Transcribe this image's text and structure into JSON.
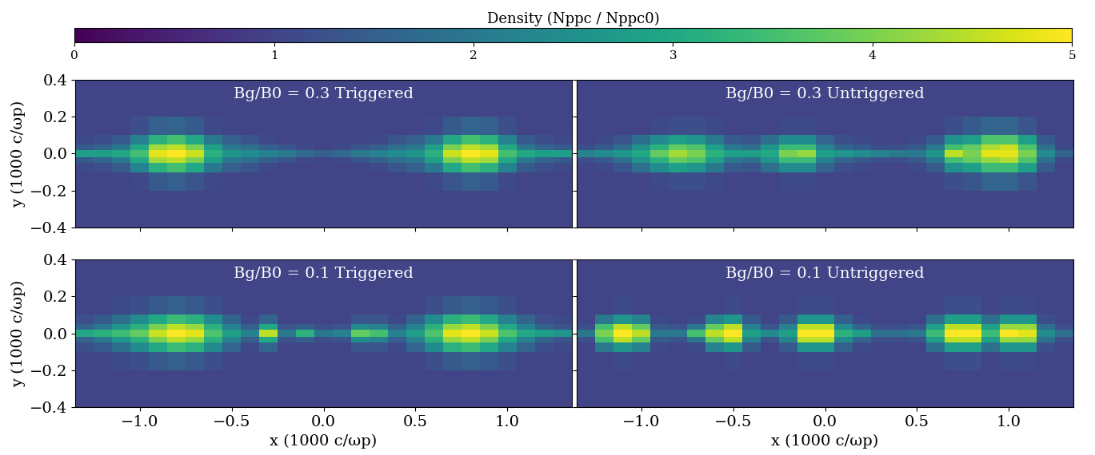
{
  "colorbar": {
    "label": "Density (Nppc / Nppc0)",
    "range": [
      0,
      5
    ],
    "ticks": [
      0,
      1,
      2,
      3,
      4,
      5
    ]
  },
  "chart_data": [
    {
      "type": "heatmap",
      "title": "Bg/B0 = 0.3 Triggered",
      "color": "viridis",
      "ylabel": "y (1000 c/ωp)",
      "tick_labels": "y",
      "xlim": [
        -1.35,
        1.35
      ],
      "ylim": [
        -0.4,
        0.4
      ],
      "xticks": [
        {
          "value": -1.0,
          "label": "−1.0"
        },
        {
          "value": -0.5,
          "label": "−0.5"
        },
        0.0,
        0.5,
        1.0
      ],
      "yticks": [
        {
          "value": -0.4,
          "label": "−0.4"
        },
        {
          "value": -0.2,
          "label": "−0.2"
        },
        0.0,
        0.2,
        0.4
      ],
      "x_edges": [
        -1.35,
        -1.25,
        -1.15,
        -1.05,
        -0.95,
        -0.85,
        -0.75,
        -0.65,
        -0.55,
        -0.45,
        -0.35,
        -0.25,
        -0.15,
        -0.05,
        0.05,
        0.15,
        0.25,
        0.35,
        0.45,
        0.55,
        0.65,
        0.75,
        0.85,
        0.95,
        1.05,
        1.15,
        1.25,
        1.35
      ],
      "y_edges": [
        -0.4,
        -0.2,
        -0.1,
        -0.05,
        -0.02,
        0.02,
        0.05,
        0.1,
        0.2,
        0.4
      ],
      "cells": [
        [
          1,
          1,
          1,
          1,
          1,
          1,
          1,
          1,
          1,
          1,
          1,
          1,
          1,
          1,
          1,
          1,
          1,
          1,
          1,
          1,
          1,
          1,
          1,
          1,
          1,
          1,
          1
        ],
        [
          1,
          1,
          1,
          1.1,
          1.4,
          1.5,
          1.3,
          1.1,
          1,
          1,
          1,
          1,
          1,
          1,
          1,
          1,
          1,
          1,
          1,
          1.1,
          1.3,
          1.5,
          1.4,
          1.1,
          1,
          1,
          1
        ],
        [
          1.1,
          1.2,
          1.4,
          2.2,
          3.2,
          3.5,
          3.0,
          2.0,
          1.5,
          1.3,
          1.1,
          1,
          1,
          1,
          1,
          1,
          1.1,
          1.3,
          1.5,
          2.0,
          3.0,
          3.5,
          3.2,
          2.2,
          1.4,
          1.2,
          1.1
        ],
        [
          1.4,
          1.6,
          2.0,
          3.0,
          4.3,
          4.5,
          4.0,
          2.8,
          2.0,
          1.8,
          1.5,
          1.3,
          1.1,
          1,
          1.1,
          1.3,
          1.5,
          1.8,
          2.0,
          2.8,
          4.0,
          4.5,
          4.3,
          3.0,
          2.0,
          1.6,
          1.4
        ],
        [
          2.8,
          2.8,
          3.0,
          3.5,
          4.8,
          5,
          4.6,
          3.2,
          2.6,
          2.4,
          2.2,
          2.0,
          1.7,
          1.5,
          1.7,
          2.0,
          2.2,
          2.4,
          2.6,
          3.2,
          4.6,
          5,
          4.8,
          3.5,
          3.0,
          2.8,
          2.8
        ],
        [
          1.4,
          1.6,
          2.0,
          3.0,
          4.3,
          4.5,
          4.0,
          2.8,
          2.0,
          1.8,
          1.5,
          1.3,
          1.1,
          1,
          1.1,
          1.3,
          1.5,
          1.8,
          2.0,
          2.8,
          4.0,
          4.5,
          4.3,
          3.0,
          2.0,
          1.6,
          1.4
        ],
        [
          1.1,
          1.2,
          1.4,
          2.2,
          3.2,
          3.5,
          3.0,
          2.0,
          1.5,
          1.3,
          1.1,
          1,
          1,
          1,
          1,
          1,
          1.1,
          1.3,
          1.5,
          2.0,
          3.0,
          3.5,
          3.2,
          2.2,
          1.4,
          1.2,
          1.1
        ],
        [
          1,
          1,
          1,
          1.2,
          1.5,
          1.6,
          1.4,
          1.1,
          1,
          1,
          1,
          1,
          1,
          1,
          1,
          1,
          1,
          1,
          1,
          1.1,
          1.4,
          1.6,
          1.5,
          1.2,
          1,
          1,
          1
        ],
        [
          1,
          1,
          1,
          1,
          1,
          1,
          1,
          1,
          1,
          1,
          1,
          1,
          1,
          1,
          1,
          1,
          1,
          1,
          1,
          1,
          1,
          1,
          1,
          1,
          1,
          1,
          1
        ]
      ]
    },
    {
      "type": "heatmap",
      "title": "Bg/B0 = 0.3 Untriggered",
      "color": "viridis",
      "tick_labels": false,
      "xlim": [
        -1.35,
        1.35
      ],
      "ylim": [
        -0.4,
        0.4
      ],
      "xticks": [
        {
          "value": -1.0,
          "label": "−1.0"
        },
        {
          "value": -0.5,
          "label": "−0.5"
        },
        0.0,
        0.5,
        1.0
      ],
      "yticks": [
        {
          "value": -0.4,
          "label": "−0.4"
        },
        {
          "value": -0.2,
          "label": "−0.2"
        },
        0.0,
        0.2,
        0.4
      ],
      "x_edges": [
        -1.35,
        -1.25,
        -1.15,
        -1.05,
        -0.95,
        -0.85,
        -0.75,
        -0.65,
        -0.55,
        -0.45,
        -0.35,
        -0.25,
        -0.15,
        -0.05,
        0.05,
        0.15,
        0.25,
        0.35,
        0.45,
        0.55,
        0.65,
        0.75,
        0.85,
        0.95,
        1.05,
        1.15,
        1.25,
        1.35
      ],
      "y_edges": [
        -0.4,
        -0.2,
        -0.1,
        -0.05,
        -0.02,
        0.02,
        0.05,
        0.1,
        0.2,
        0.4
      ],
      "cells": [
        [
          1,
          1,
          1,
          1,
          1,
          1,
          1,
          1,
          1,
          1,
          1,
          1,
          1,
          1,
          1,
          1,
          1,
          1,
          1,
          1,
          1,
          1,
          1,
          1,
          1,
          1,
          1
        ],
        [
          1,
          1,
          1,
          1,
          1.1,
          1.2,
          1.2,
          1.1,
          1,
          1,
          1,
          1.1,
          1.1,
          1,
          1,
          1,
          1,
          1,
          1,
          1,
          1.2,
          1.3,
          1.6,
          1.6,
          1.3,
          1,
          1
        ],
        [
          1,
          1.1,
          1.3,
          1.8,
          2.4,
          2.8,
          2.6,
          2.0,
          1.4,
          1.3,
          1.8,
          2.4,
          2.4,
          1.6,
          1.2,
          1.1,
          1,
          1,
          1.1,
          1.4,
          2.5,
          2.8,
          3.4,
          3.4,
          2.8,
          1.4,
          1
        ],
        [
          1.2,
          1.4,
          1.8,
          2.5,
          3.2,
          3.8,
          3.6,
          2.8,
          2.0,
          1.8,
          2.6,
          3.4,
          3.4,
          2.2,
          1.6,
          1.4,
          1.2,
          1.2,
          1.4,
          2.0,
          3.5,
          3.8,
          4.2,
          4.4,
          3.6,
          1.8,
          1.1
        ],
        [
          2.2,
          2.4,
          2.6,
          3.0,
          3.8,
          4.3,
          4.0,
          3.2,
          2.8,
          2.8,
          3.0,
          4.0,
          4.2,
          2.8,
          2.6,
          2.4,
          2.2,
          2.0,
          2.0,
          2.6,
          4.5,
          4.0,
          4.8,
          4.8,
          4.0,
          2.4,
          1.6
        ],
        [
          1.2,
          1.4,
          1.8,
          2.5,
          3.2,
          3.8,
          3.6,
          2.8,
          2.0,
          1.8,
          2.6,
          3.4,
          3.4,
          2.2,
          1.6,
          1.4,
          1.2,
          1.2,
          1.4,
          2.0,
          3.5,
          3.8,
          4.4,
          4.6,
          3.6,
          1.8,
          1.1
        ],
        [
          1,
          1.1,
          1.3,
          1.8,
          2.4,
          2.8,
          2.6,
          2.0,
          1.4,
          1.3,
          1.8,
          2.4,
          2.4,
          1.6,
          1.2,
          1.1,
          1,
          1,
          1.1,
          1.4,
          2.5,
          2.8,
          3.6,
          3.6,
          2.8,
          1.4,
          1
        ],
        [
          1,
          1,
          1,
          1,
          1.1,
          1.2,
          1.2,
          1.1,
          1,
          1,
          1,
          1.1,
          1.1,
          1,
          1,
          1,
          1,
          1,
          1,
          1,
          1.2,
          1.4,
          1.6,
          1.6,
          1.3,
          1,
          1
        ],
        [
          1,
          1,
          1,
          1,
          1,
          1,
          1,
          1,
          1,
          1,
          1,
          1,
          1,
          1,
          1,
          1,
          1,
          1,
          1,
          1,
          1,
          1,
          1,
          1,
          1,
          1,
          1
        ]
      ]
    },
    {
      "type": "heatmap",
      "title": "Bg/B0 = 0.1 Triggered",
      "color": "viridis",
      "xlabel": "x (1000 c/ωp)",
      "ylabel": "y (1000 c/ωp)",
      "tick_labels": true,
      "xlim": [
        -1.35,
        1.35
      ],
      "ylim": [
        -0.4,
        0.4
      ],
      "xticks": [
        {
          "value": -1.0,
          "label": "−1.0"
        },
        {
          "value": -0.5,
          "label": "−0.5"
        },
        0.0,
        0.5,
        1.0
      ],
      "yticks": [
        {
          "value": -0.4,
          "label": "−0.4"
        },
        {
          "value": -0.2,
          "label": "−0.2"
        },
        0.0,
        0.2,
        0.4
      ],
      "x_edges": [
        -1.35,
        -1.25,
        -1.15,
        -1.05,
        -0.95,
        -0.85,
        -0.75,
        -0.65,
        -0.55,
        -0.45,
        -0.35,
        -0.25,
        -0.15,
        -0.05,
        0.05,
        0.15,
        0.25,
        0.35,
        0.45,
        0.55,
        0.65,
        0.75,
        0.85,
        0.95,
        1.05,
        1.15,
        1.25,
        1.35
      ],
      "y_edges": [
        -0.4,
        -0.2,
        -0.1,
        -0.05,
        -0.02,
        0.02,
        0.05,
        0.1,
        0.2,
        0.4
      ],
      "cells": [
        [
          1,
          1,
          1,
          1,
          1,
          1,
          1,
          1,
          1,
          1,
          1,
          1,
          1,
          1,
          1,
          1,
          1,
          1,
          1,
          1,
          1,
          1,
          1,
          1,
          1,
          1,
          1
        ],
        [
          1,
          1,
          1.1,
          1.2,
          1.4,
          1.5,
          1.4,
          1.2,
          1,
          1,
          1,
          1,
          1,
          1,
          1,
          1,
          1,
          1,
          1,
          1.2,
          1.4,
          1.5,
          1.4,
          1.2,
          1,
          1,
          1
        ],
        [
          1.2,
          1.4,
          1.8,
          2.4,
          3.0,
          3.4,
          3.2,
          2.4,
          1.6,
          1.1,
          1.6,
          1,
          1,
          1,
          1,
          1.3,
          1.3,
          1.1,
          1.6,
          2.4,
          3.2,
          3.4,
          3.0,
          2.2,
          1.6,
          1.2,
          1.1
        ],
        [
          1.6,
          2.0,
          2.6,
          3.2,
          4.0,
          4.5,
          4.2,
          3.2,
          2.2,
          1.5,
          3.0,
          1.3,
          1.5,
          1.2,
          1.3,
          2.4,
          2.2,
          1.5,
          2.2,
          3.2,
          4.2,
          4.5,
          4.0,
          3.0,
          2.2,
          1.6,
          1.3
        ],
        [
          3.0,
          3.2,
          3.4,
          3.8,
          4.6,
          5,
          4.8,
          3.6,
          2.8,
          2.2,
          4.5,
          2.0,
          3.2,
          2.0,
          2.2,
          3.8,
          3.5,
          2.2,
          2.8,
          3.6,
          4.8,
          5,
          4.6,
          3.6,
          3.0,
          2.8,
          2.6
        ],
        [
          1.6,
          2.0,
          2.6,
          3.2,
          4.0,
          4.5,
          4.2,
          3.2,
          2.2,
          1.5,
          3.0,
          1.3,
          1.5,
          1.2,
          1.3,
          2.4,
          2.2,
          1.5,
          2.2,
          3.2,
          4.2,
          4.5,
          4.0,
          3.0,
          2.2,
          1.6,
          1.3
        ],
        [
          1.2,
          1.4,
          1.8,
          2.4,
          3.0,
          3.4,
          3.2,
          2.4,
          1.6,
          1.1,
          1.6,
          1,
          1,
          1,
          1,
          1.3,
          1.3,
          1.1,
          1.6,
          2.4,
          3.2,
          3.4,
          3.0,
          2.2,
          1.6,
          1.2,
          1.1
        ],
        [
          1,
          1,
          1.1,
          1.2,
          1.4,
          1.5,
          1.4,
          1.2,
          1,
          1,
          1,
          1,
          1,
          1,
          1,
          1,
          1,
          1,
          1,
          1.2,
          1.4,
          1.5,
          1.4,
          1.2,
          1,
          1,
          1
        ],
        [
          1,
          1,
          1,
          1,
          1,
          1,
          1,
          1,
          1,
          1,
          1,
          1,
          1,
          1,
          1,
          1,
          1,
          1,
          1,
          1,
          1,
          1,
          1,
          1,
          1,
          1,
          1
        ]
      ]
    },
    {
      "type": "heatmap",
      "title": "Bg/B0 = 0.1 Untriggered",
      "color": "viridis",
      "xlabel": "x (1000 c/ωp)",
      "tick_labels": "x",
      "xlim": [
        -1.35,
        1.35
      ],
      "ylim": [
        -0.4,
        0.4
      ],
      "xticks": [
        {
          "value": -1.0,
          "label": "−1.0"
        },
        {
          "value": -0.5,
          "label": "−0.5"
        },
        0.0,
        0.5,
        1.0
      ],
      "yticks": [
        {
          "value": -0.4,
          "label": "−0.4"
        },
        {
          "value": -0.2,
          "label": "−0.2"
        },
        0.0,
        0.2,
        0.4
      ],
      "x_edges": [
        -1.35,
        -1.25,
        -1.15,
        -1.05,
        -0.95,
        -0.85,
        -0.75,
        -0.65,
        -0.55,
        -0.45,
        -0.35,
        -0.25,
        -0.15,
        -0.05,
        0.05,
        0.15,
        0.25,
        0.35,
        0.45,
        0.55,
        0.65,
        0.75,
        0.85,
        0.95,
        1.05,
        1.15,
        1.25,
        1.35
      ],
      "y_edges": [
        -0.4,
        -0.2,
        -0.1,
        -0.05,
        -0.02,
        0.02,
        0.05,
        0.1,
        0.2,
        0.4
      ],
      "cells": [
        [
          1,
          1,
          1,
          1,
          1,
          1,
          1,
          1,
          1,
          1,
          1,
          1,
          1,
          1,
          1,
          1,
          1,
          1,
          1,
          1,
          1,
          1,
          1,
          1,
          1,
          1,
          1
        ],
        [
          1,
          1,
          1.1,
          1,
          1,
          1,
          1,
          1,
          1.1,
          1,
          1,
          1,
          1.1,
          1.1,
          1,
          1,
          1,
          1,
          1,
          1,
          1.2,
          1.2,
          1,
          1.1,
          1.1,
          1,
          1
        ],
        [
          1,
          2.0,
          2.6,
          2.2,
          1.1,
          1,
          1.1,
          2.2,
          2.6,
          1.4,
          1,
          1.4,
          2.6,
          2.6,
          1.5,
          1.1,
          1,
          1,
          1,
          1.8,
          2.8,
          2.8,
          1.8,
          2.6,
          2.6,
          1.2,
          1
        ],
        [
          1.2,
          3.5,
          4.5,
          3.8,
          1.4,
          1.3,
          2.0,
          3.8,
          4.5,
          2.2,
          1.3,
          2.2,
          4.5,
          4.5,
          2.4,
          1.6,
          1.2,
          1.2,
          1.3,
          2.8,
          4.5,
          4.5,
          2.8,
          4.2,
          4.2,
          1.8,
          1.2
        ],
        [
          2.0,
          4.0,
          5,
          4.5,
          2.0,
          2.0,
          3.5,
          4.5,
          5,
          2.8,
          2.4,
          2.8,
          5,
          5,
          3.2,
          2.8,
          1.8,
          1.8,
          2.0,
          3.4,
          5,
          5,
          3.4,
          5,
          4.8,
          2.4,
          1.8
        ],
        [
          1.2,
          3.5,
          4.5,
          3.8,
          1.4,
          1.3,
          2.0,
          3.8,
          4.5,
          2.2,
          1.3,
          2.2,
          4.5,
          4.5,
          2.4,
          1.6,
          1.2,
          1.2,
          1.3,
          2.8,
          4.5,
          4.5,
          2.8,
          4.2,
          4.2,
          1.8,
          1.2
        ],
        [
          1,
          2.0,
          2.6,
          2.2,
          1.1,
          1,
          1.1,
          2.2,
          2.6,
          1.4,
          1,
          1.4,
          2.6,
          2.6,
          1.5,
          1.1,
          1,
          1,
          1,
          1.8,
          2.8,
          2.8,
          1.8,
          2.6,
          2.6,
          1.2,
          1
        ],
        [
          1,
          1,
          1.1,
          1,
          1,
          1,
          1,
          1,
          1.1,
          1,
          1,
          1,
          1.1,
          1.1,
          1,
          1,
          1,
          1,
          1,
          1,
          1.2,
          1.2,
          1,
          1.1,
          1.1,
          1,
          1
        ],
        [
          1,
          1,
          1,
          1,
          1,
          1,
          1,
          1,
          1,
          1,
          1,
          1,
          1,
          1,
          1,
          1,
          1,
          1,
          1,
          1,
          1,
          1,
          1,
          1,
          1,
          1,
          1
        ]
      ]
    }
  ]
}
